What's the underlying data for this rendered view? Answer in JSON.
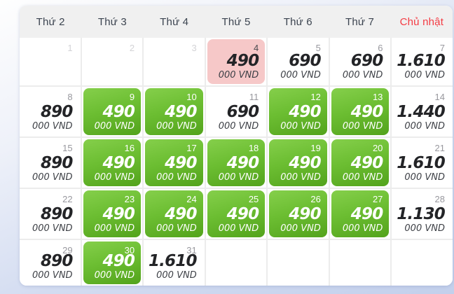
{
  "calendar": {
    "weekday_headers": [
      {
        "label": "Thứ 2",
        "sunday": false
      },
      {
        "label": "Thứ 3",
        "sunday": false
      },
      {
        "label": "Thứ 4",
        "sunday": false
      },
      {
        "label": "Thứ 5",
        "sunday": false
      },
      {
        "label": "Thứ 6",
        "sunday": false
      },
      {
        "label": "Thứ 7",
        "sunday": false
      },
      {
        "label": "Chủ nhật",
        "sunday": true
      }
    ],
    "price_unit": "000 VND",
    "weeks": [
      [
        {
          "day": "1",
          "type": "past"
        },
        {
          "day": "2",
          "type": "past"
        },
        {
          "day": "3",
          "type": "past"
        },
        {
          "day": "4",
          "price": "490",
          "type": "selected"
        },
        {
          "day": "5",
          "price": "690",
          "type": "normal"
        },
        {
          "day": "6",
          "price": "690",
          "type": "normal"
        },
        {
          "day": "7",
          "price": "1.610",
          "type": "normal"
        }
      ],
      [
        {
          "day": "8",
          "price": "890",
          "type": "normal"
        },
        {
          "day": "9",
          "price": "490",
          "type": "deal"
        },
        {
          "day": "10",
          "price": "490",
          "type": "deal"
        },
        {
          "day": "11",
          "price": "690",
          "type": "normal"
        },
        {
          "day": "12",
          "price": "490",
          "type": "deal"
        },
        {
          "day": "13",
          "price": "490",
          "type": "deal"
        },
        {
          "day": "14",
          "price": "1.440",
          "type": "normal"
        }
      ],
      [
        {
          "day": "15",
          "price": "890",
          "type": "normal"
        },
        {
          "day": "16",
          "price": "490",
          "type": "deal"
        },
        {
          "day": "17",
          "price": "490",
          "type": "deal"
        },
        {
          "day": "18",
          "price": "490",
          "type": "deal"
        },
        {
          "day": "19",
          "price": "490",
          "type": "deal"
        },
        {
          "day": "20",
          "price": "490",
          "type": "deal"
        },
        {
          "day": "21",
          "price": "1.610",
          "type": "normal"
        }
      ],
      [
        {
          "day": "22",
          "price": "890",
          "type": "normal"
        },
        {
          "day": "23",
          "price": "490",
          "type": "deal"
        },
        {
          "day": "24",
          "price": "490",
          "type": "deal"
        },
        {
          "day": "25",
          "price": "490",
          "type": "deal"
        },
        {
          "day": "26",
          "price": "490",
          "type": "deal"
        },
        {
          "day": "27",
          "price": "490",
          "type": "deal"
        },
        {
          "day": "28",
          "price": "1.130",
          "type": "normal"
        }
      ],
      [
        {
          "day": "29",
          "price": "890",
          "type": "normal"
        },
        {
          "day": "30",
          "price": "490",
          "type": "deal"
        },
        {
          "day": "31",
          "price": "1.610",
          "type": "normal"
        },
        {
          "type": "blank"
        },
        {
          "type": "blank"
        },
        {
          "type": "blank"
        },
        {
          "type": "blank"
        }
      ]
    ],
    "colors": {
      "header_background": "#f0f0f0",
      "header_text": "#3c4450",
      "sunday_text": "#f43b43",
      "grid_line": "#ececec",
      "deal_gradient_start": "#85cf4b",
      "deal_gradient_end": "#53a31c",
      "selected_background": "#f6c8c8",
      "price_text": "#232427",
      "day_number_muted": "#d3d3d6",
      "day_number": "#98989e",
      "page_background_start": "#fefefe",
      "page_background_end": "#c3d0ec"
    }
  }
}
